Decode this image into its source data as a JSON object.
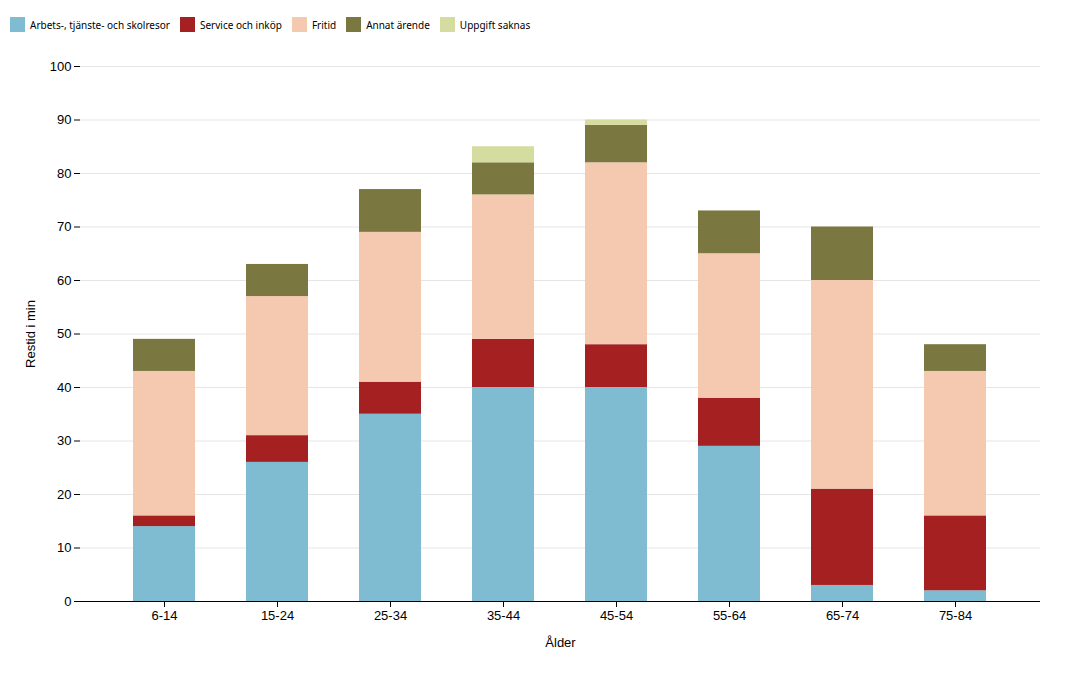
{
  "chart_data": {
    "type": "bar",
    "stacked": true,
    "categories": [
      "6-14",
      "15-24",
      "25-34",
      "35-44",
      "45-54",
      "55-64",
      "65-74",
      "75-84"
    ],
    "series": [
      {
        "name": "Arbets-, tjänste- och skolresor",
        "color": "#7FBCD2",
        "values": [
          14,
          26,
          35,
          40,
          40,
          29,
          3,
          2
        ]
      },
      {
        "name": "Service och inköp",
        "color": "#A52020",
        "values": [
          2,
          5,
          6,
          9,
          8,
          9,
          18,
          14
        ]
      },
      {
        "name": "Fritid",
        "color": "#F5C8B0",
        "values": [
          27,
          26,
          28,
          27,
          34,
          27,
          39,
          27
        ]
      },
      {
        "name": "Annat ärende",
        "color": "#7A7840",
        "values": [
          6,
          6,
          8,
          6,
          7,
          8,
          10,
          5
        ]
      },
      {
        "name": "Uppgift saknas",
        "color": "#D4DCA0",
        "values": [
          0,
          0,
          0,
          3,
          1,
          0,
          0,
          0
        ]
      }
    ],
    "xlabel": "Ålder",
    "ylabel": "Restid i min",
    "ylim": [
      0,
      100
    ],
    "yticks": [
      0,
      10,
      20,
      30,
      40,
      50,
      60,
      70,
      80,
      90,
      100
    ],
    "grid": true,
    "legend": "top"
  }
}
